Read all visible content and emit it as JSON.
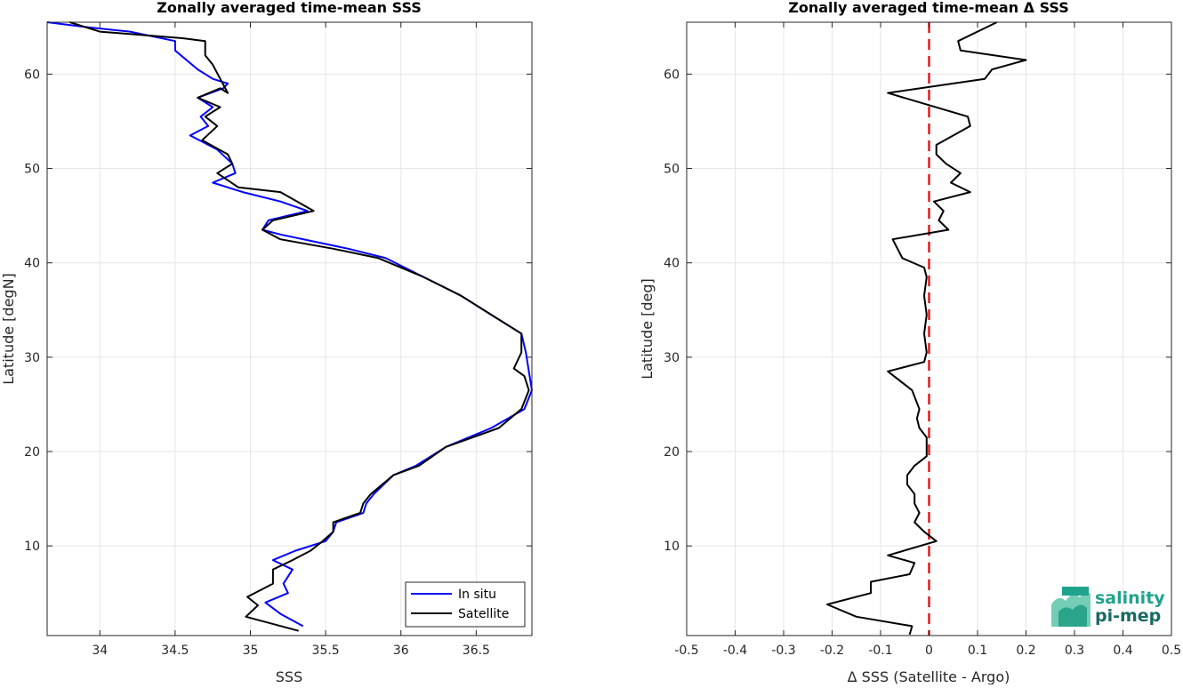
{
  "chart_data": [
    {
      "type": "line",
      "title": "Zonally averaged time-mean SSS",
      "xlabel": "SSS",
      "ylabel": "Latitude [degN]",
      "xlim": [
        33.65,
        36.87
      ],
      "ylim": [
        0.5,
        65.5
      ],
      "xticks": [
        "34",
        "34.5",
        "35",
        "35.5",
        "36",
        "36.5"
      ],
      "xtick_values": [
        34,
        34.5,
        35,
        35.5,
        36,
        36.5
      ],
      "yticks": [
        "10",
        "20",
        "30",
        "40",
        "50",
        "60"
      ],
      "ytick_values": [
        10,
        20,
        30,
        40,
        50,
        60
      ],
      "grid": true,
      "legend_position": "bottom-right",
      "series": [
        {
          "name": "In situ",
          "color": "#0000ff",
          "x": [
            35.35,
            35.2,
            35.1,
            35.25,
            35.22,
            35.28,
            35.15,
            35.3,
            35.5,
            35.55,
            35.57,
            35.75,
            35.77,
            35.82,
            35.95,
            36.1,
            36.3,
            36.6,
            36.82,
            36.87,
            36.85,
            36.83,
            36.8,
            36.6,
            36.4,
            36.15,
            35.9,
            35.65,
            35.2,
            35.08,
            35.12,
            35.38,
            35.2,
            34.95,
            34.75,
            34.9,
            34.88,
            34.78,
            34.6,
            34.72,
            34.67,
            34.75,
            34.65,
            34.82,
            34.85,
            34.75,
            34.65,
            34.5,
            34.5,
            34.2,
            33.9,
            33.65
          ],
          "y": [
            1.5,
            2.8,
            4.0,
            5.0,
            6.0,
            7.5,
            8.5,
            9.5,
            10.5,
            11.5,
            12.5,
            13.5,
            14.5,
            15.5,
            17.5,
            18.5,
            20.5,
            22.5,
            24.5,
            26.5,
            28.5,
            30.5,
            32.5,
            34.5,
            36.5,
            38.5,
            40.5,
            41.5,
            43.0,
            43.5,
            44.5,
            45.5,
            46.5,
            47.5,
            48.5,
            49.5,
            50.5,
            52.0,
            53.5,
            54.5,
            55.5,
            56.5,
            57.5,
            58.5,
            59.0,
            59.5,
            60.5,
            62.5,
            63.5,
            64.5,
            65.0,
            65.5
          ]
        },
        {
          "name": "Satellite",
          "color": "#000000",
          "x": [
            35.32,
            34.97,
            35.05,
            34.98,
            35.15,
            35.15,
            35.28,
            35.4,
            35.48,
            35.55,
            35.55,
            35.73,
            35.75,
            35.8,
            35.95,
            36.12,
            36.3,
            36.65,
            36.8,
            36.85,
            36.82,
            36.75,
            36.8,
            36.8,
            36.6,
            36.4,
            36.15,
            35.85,
            35.55,
            35.2,
            35.08,
            35.15,
            35.42,
            35.2,
            34.92,
            34.78,
            34.88,
            34.85,
            34.68,
            34.78,
            34.7,
            34.8,
            34.65,
            34.8,
            34.85,
            34.8,
            34.75,
            34.7,
            34.7,
            34.55,
            34.0,
            33.8
          ],
          "y": [
            1.0,
            2.5,
            3.7,
            4.6,
            6.0,
            7.5,
            8.5,
            9.5,
            10.5,
            11.5,
            12.5,
            13.5,
            14.5,
            15.5,
            17.5,
            18.5,
            20.5,
            22.5,
            24.5,
            26.5,
            28.0,
            28.8,
            30.5,
            32.5,
            34.5,
            36.5,
            38.5,
            40.5,
            41.5,
            42.5,
            43.5,
            44.5,
            45.5,
            47.5,
            48.0,
            49.5,
            50.5,
            51.5,
            53.0,
            54.5,
            55.5,
            56.5,
            57.5,
            58.5,
            58.0,
            59.5,
            61.0,
            62.0,
            63.5,
            63.8,
            64.5,
            65.5
          ]
        }
      ]
    },
    {
      "type": "line",
      "title": "Zonally averaged time-mean Δ SSS",
      "xlabel": "Δ SSS (Satellite - Argo)",
      "ylabel": "Latitude [deg]",
      "xlim": [
        -0.5,
        0.5
      ],
      "ylim": [
        0.5,
        65.5
      ],
      "xticks": [
        "-0.5",
        "-0.4",
        "-0.3",
        "-0.2",
        "-0.1",
        "0",
        "0.1",
        "0.2",
        "0.3",
        "0.4",
        "0.5"
      ],
      "xtick_values": [
        -0.5,
        -0.4,
        -0.3,
        -0.2,
        -0.1,
        0,
        0.1,
        0.2,
        0.3,
        0.4,
        0.5
      ],
      "yticks": [
        "10",
        "20",
        "30",
        "40",
        "50",
        "60"
      ],
      "ytick_values": [
        10,
        20,
        30,
        40,
        50,
        60
      ],
      "grid": true,
      "reference_line": {
        "x": 0,
        "color": "#e31a1c",
        "style": "dashed"
      },
      "series": [
        {
          "color": "#000000",
          "x": [
            -0.04,
            -0.035,
            -0.15,
            -0.21,
            -0.12,
            -0.12,
            -0.04,
            -0.03,
            -0.085,
            0.015,
            -0.01,
            -0.03,
            -0.02,
            -0.03,
            -0.03,
            -0.045,
            -0.045,
            -0.03,
            -0.005,
            -0.005,
            -0.005,
            -0.02,
            -0.025,
            -0.02,
            -0.035,
            -0.085,
            -0.01,
            -0.005,
            -0.01,
            -0.005,
            -0.01,
            -0.005,
            -0.01,
            -0.055,
            -0.075,
            0.04,
            0.02,
            0.03,
            0.01,
            0.085,
            0.045,
            0.065,
            0.035,
            0.015,
            0.015,
            0.085,
            0.08,
            -0.085,
            0.115,
            0.13,
            0.2,
            0.065,
            0.06,
            0.14
          ],
          "y": [
            0.6,
            1.5,
            2.5,
            3.8,
            5.0,
            6.2,
            7.0,
            8.2,
            9.0,
            10.5,
            11.5,
            12.5,
            13.5,
            14.5,
            15.5,
            16.5,
            17.5,
            18.5,
            19.5,
            20.5,
            21.5,
            22.5,
            23.5,
            24.5,
            26.5,
            28.5,
            29.5,
            30.5,
            32.5,
            34.5,
            36.5,
            38.5,
            39.5,
            40.5,
            42.5,
            43.5,
            44.5,
            45.5,
            46.5,
            47.5,
            48.5,
            49.5,
            50.5,
            51.5,
            52.5,
            54.5,
            55.5,
            58.0,
            59.5,
            60.5,
            61.5,
            62.5,
            63.5,
            65.5
          ]
        }
      ]
    }
  ],
  "legend": {
    "items": [
      "In situ",
      "Satellite"
    ]
  },
  "logo": {
    "line1": "salinity",
    "line2": "pi-mep"
  }
}
